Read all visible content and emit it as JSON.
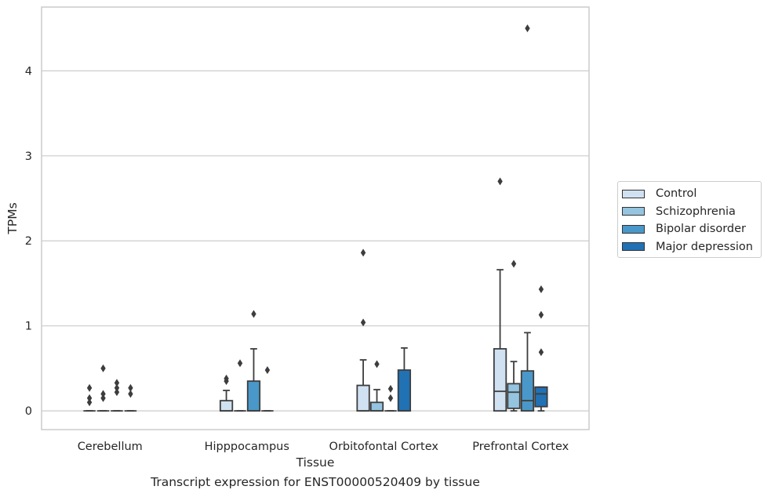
{
  "chart_data": {
    "type": "box",
    "xlabel": "Tissue",
    "ylabel": "TPMs",
    "categories": [
      "Cerebellum",
      "Hipppocampus",
      "Orbitofontal Cortex",
      "Prefrontal Cortex"
    ],
    "ylim": [
      -0.22,
      4.75
    ],
    "yticks": [
      0,
      1,
      2,
      3,
      4
    ],
    "grid": "horizontal",
    "legend_position": "right",
    "series": [
      {
        "name": "Control",
        "color": "#d0e1f2",
        "boxes": [
          {
            "q1": 0,
            "median": 0,
            "q3": 0,
            "whisker_low": 0,
            "whisker_high": 0,
            "outliers": [
              0.1,
              0.15,
              0.27
            ]
          },
          {
            "q1": 0,
            "median": 0,
            "q3": 0.12,
            "whisker_low": 0,
            "whisker_high": 0.24,
            "outliers": [
              0.35,
              0.38
            ]
          },
          {
            "q1": 0,
            "median": 0,
            "q3": 0.3,
            "whisker_low": 0,
            "whisker_high": 0.6,
            "outliers": [
              1.04,
              1.86
            ]
          },
          {
            "q1": 0,
            "median": 0.23,
            "q3": 0.73,
            "whisker_low": 0,
            "whisker_high": 1.66,
            "outliers": [
              2.7
            ]
          }
        ]
      },
      {
        "name": "Schizophrenia",
        "color": "#94c4df",
        "boxes": [
          {
            "q1": 0,
            "median": 0,
            "q3": 0,
            "whisker_low": 0,
            "whisker_high": 0,
            "outliers": [
              0.15,
              0.2,
              0.5
            ]
          },
          {
            "q1": 0,
            "median": 0,
            "q3": 0,
            "whisker_low": 0,
            "whisker_high": 0,
            "outliers": [
              0.56
            ]
          },
          {
            "q1": 0,
            "median": 0,
            "q3": 0.1,
            "whisker_low": 0,
            "whisker_high": 0.25,
            "outliers": [
              0.55
            ]
          },
          {
            "q1": 0.03,
            "median": 0.22,
            "q3": 0.32,
            "whisker_low": 0,
            "whisker_high": 0.58,
            "outliers": [
              1.73
            ]
          }
        ]
      },
      {
        "name": "Bipolar disorder",
        "color": "#4a98c9",
        "boxes": [
          {
            "q1": 0,
            "median": 0,
            "q3": 0,
            "whisker_low": 0,
            "whisker_high": 0,
            "outliers": [
              0.22,
              0.27,
              0.33
            ]
          },
          {
            "q1": 0,
            "median": 0,
            "q3": 0.35,
            "whisker_low": 0,
            "whisker_high": 0.73,
            "outliers": [
              1.14
            ]
          },
          {
            "q1": 0,
            "median": 0,
            "q3": 0,
            "whisker_low": 0,
            "whisker_high": 0,
            "outliers": [
              0.15,
              0.26
            ]
          },
          {
            "q1": 0,
            "median": 0.12,
            "q3": 0.47,
            "whisker_low": 0,
            "whisker_high": 0.92,
            "outliers": [
              4.5
            ]
          }
        ]
      },
      {
        "name": "Major depression",
        "color": "#2171b5",
        "boxes": [
          {
            "q1": 0,
            "median": 0,
            "q3": 0,
            "whisker_low": 0,
            "whisker_high": 0,
            "outliers": [
              0.2,
              0.27
            ]
          },
          {
            "q1": 0,
            "median": 0,
            "q3": 0,
            "whisker_low": 0,
            "whisker_high": 0,
            "outliers": [
              0.48
            ]
          },
          {
            "q1": 0,
            "median": 0,
            "q3": 0.48,
            "whisker_low": 0,
            "whisker_high": 0.74,
            "outliers": []
          },
          {
            "q1": 0.05,
            "median": 0.2,
            "q3": 0.28,
            "whisker_low": 0,
            "whisker_high": 0.28,
            "outliers": [
              0.69,
              1.13,
              1.43
            ]
          }
        ]
      }
    ]
  },
  "caption": "Transcript expression for ENST00000520409 by tissue"
}
